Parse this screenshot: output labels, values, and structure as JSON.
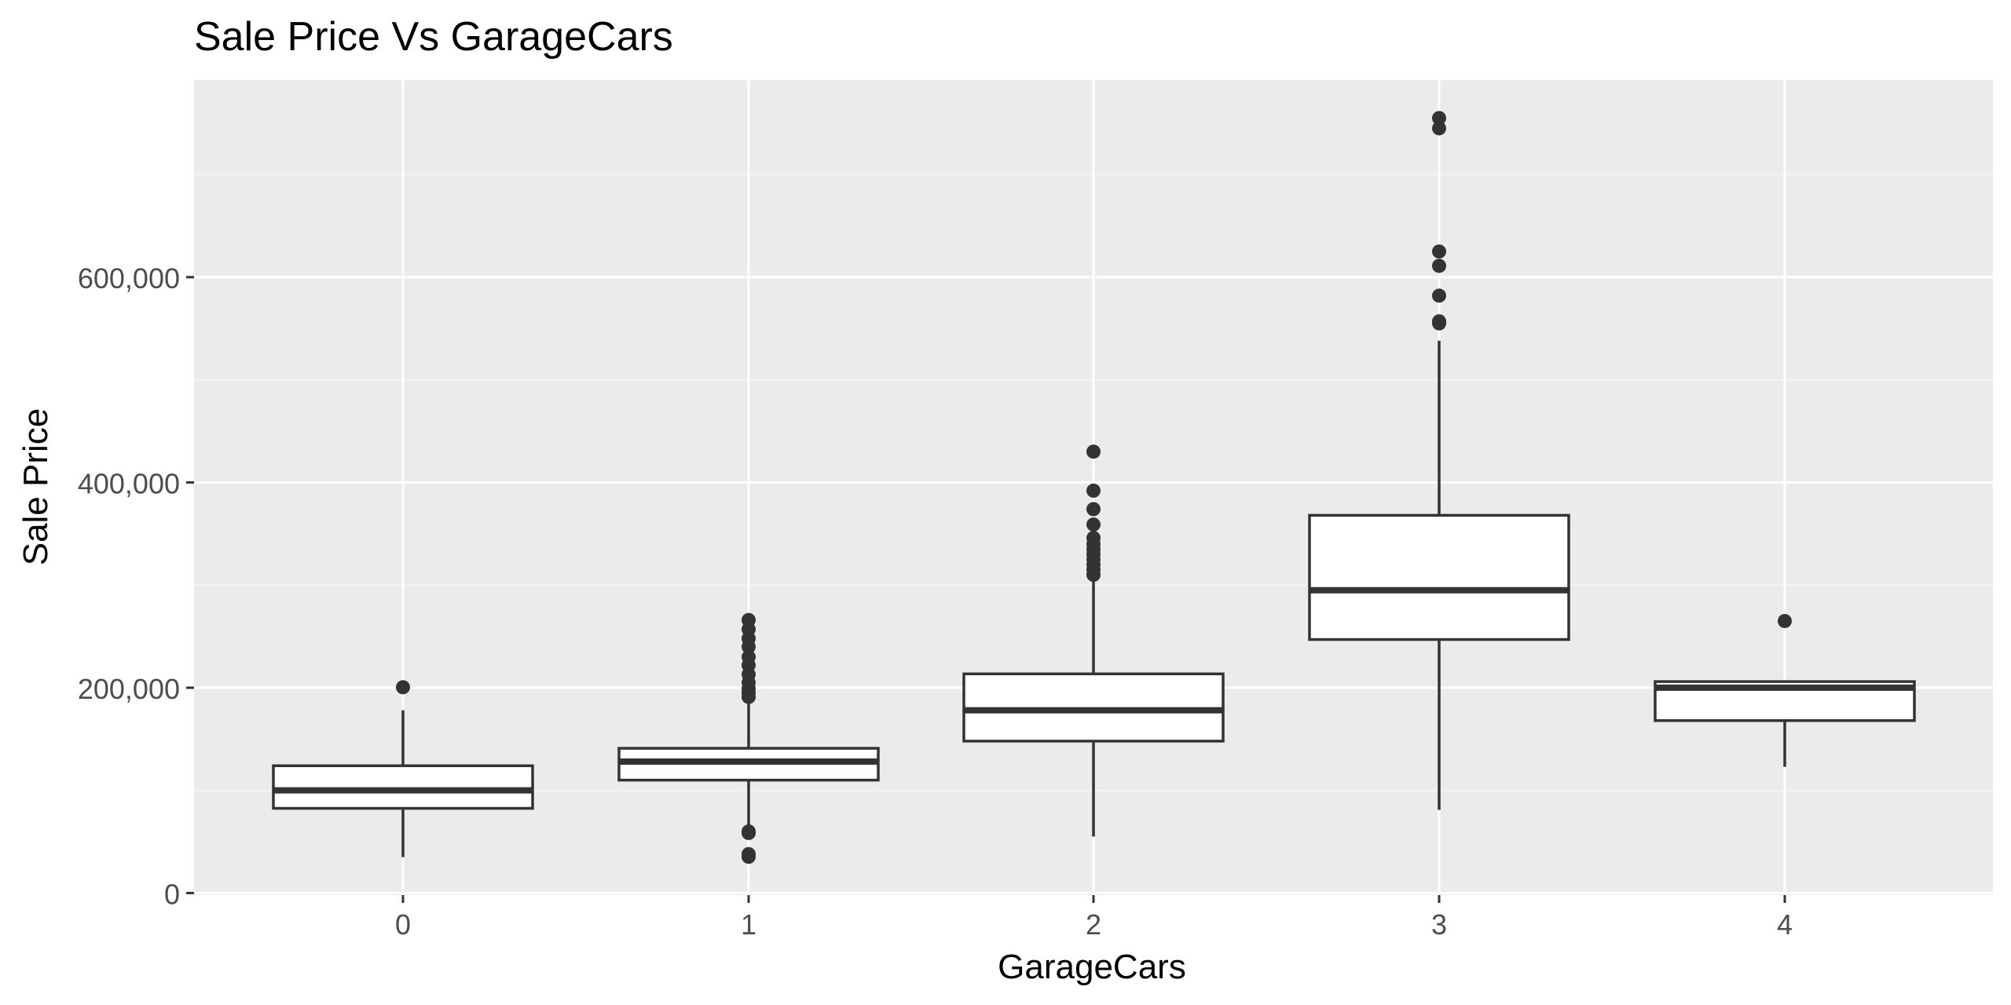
{
  "chart_data": {
    "type": "boxplot",
    "title": "Sale Price Vs GarageCars",
    "xlabel": "GarageCars",
    "ylabel": "Sale Price",
    "x_ticks": [
      "0",
      "1",
      "2",
      "3",
      "4"
    ],
    "y_ticks": [
      {
        "value": 0,
        "label": "0"
      },
      {
        "value": 200000,
        "label": "200,000"
      },
      {
        "value": 400000,
        "label": "400,000"
      },
      {
        "value": 600000,
        "label": "600,000"
      }
    ],
    "ylim": [
      -2000,
      792000
    ],
    "grid": true,
    "colors": {
      "panel": "#EBEBEB",
      "grid_major": "#FFFFFF",
      "grid_minor": "#F5F5F5",
      "box_fill": "#FFFFFF",
      "box_stroke": "#333333",
      "outlier": "#333333",
      "axis_text": "#4D4D4D",
      "title_text": "#000000"
    },
    "boxes": [
      {
        "category": "0",
        "lower_whisker": 35000,
        "q1": 82500,
        "median": 100000,
        "q3": 124000,
        "upper_whisker": 178000,
        "outliers": [
          200500
        ]
      },
      {
        "category": "1",
        "lower_whisker": 64500,
        "q1": 110000,
        "median": 128000,
        "q3": 141000,
        "upper_whisker": 186000,
        "outliers": [
          35300,
          37900,
          58500,
          60000,
          191000,
          195000,
          199000,
          205000,
          213000,
          222000,
          230000,
          240000,
          248000,
          257000,
          266000
        ]
      },
      {
        "category": "2",
        "lower_whisker": 55000,
        "q1": 148000,
        "median": 178000,
        "q3": 213500,
        "upper_whisker": 308000,
        "outliers": [
          310000,
          315000,
          320000,
          325000,
          330000,
          335000,
          340000,
          346000,
          359000,
          374000,
          392000,
          430000
        ]
      },
      {
        "category": "3",
        "lower_whisker": 81000,
        "q1": 247000,
        "median": 295000,
        "q3": 368000,
        "upper_whisker": 538000,
        "outliers": [
          555000,
          557000,
          582000,
          611000,
          625000,
          745000,
          755000
        ]
      },
      {
        "category": "4",
        "lower_whisker": 123000,
        "q1": 168000,
        "median": 200000,
        "q3": 206000,
        "upper_whisker": 206000,
        "outliers": [
          265000
        ]
      }
    ]
  }
}
